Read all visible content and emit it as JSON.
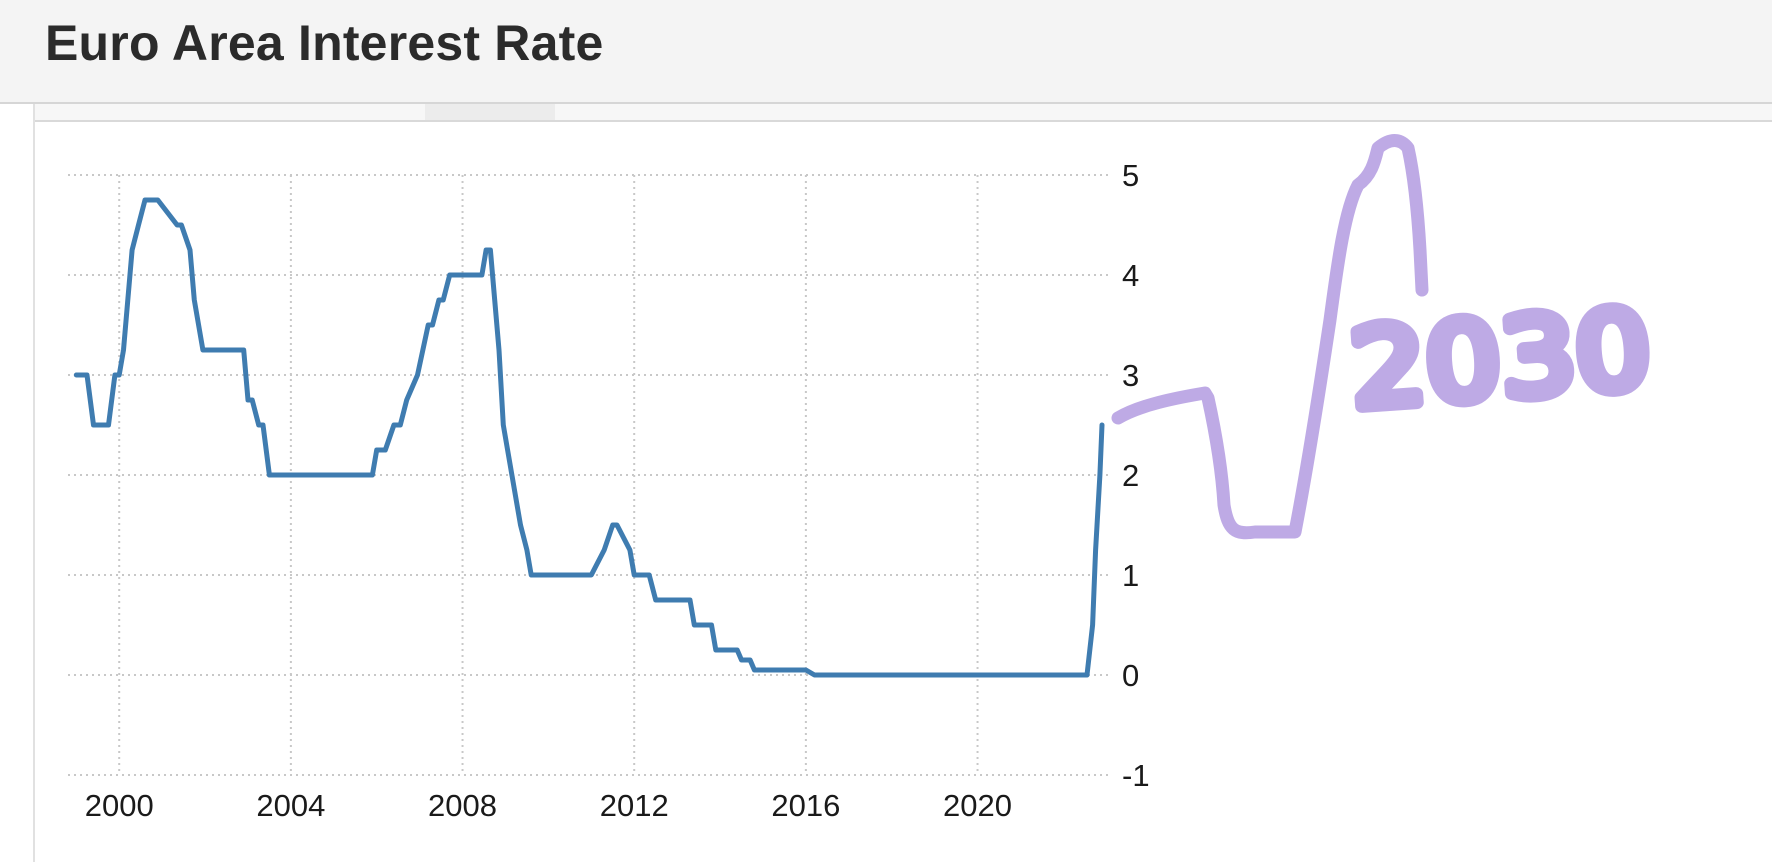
{
  "header": {
    "title": "Euro Area Interest Rate"
  },
  "chart_data": {
    "type": "line",
    "title": "Euro Area Interest Rate",
    "xlabel": "",
    "ylabel": "",
    "xlim": [
      1998.9,
      2022.9
    ],
    "ylim": [
      -1,
      5
    ],
    "x_ticks": [
      2000,
      2004,
      2008,
      2012,
      2016,
      2020
    ],
    "y_ticks": [
      -1,
      0,
      1,
      2,
      3,
      4,
      5
    ],
    "y_axis_side": "right",
    "grid": true,
    "grid_style": "dotted",
    "legend": "none",
    "series": [
      {
        "color": "#3f7cb0",
        "x": [
          1999.0,
          1999.25,
          1999.4,
          1999.75,
          1999.9,
          2000.0,
          2000.1,
          2000.2,
          2000.3,
          2000.45,
          2000.6,
          2000.75,
          2000.9,
          2001.35,
          2001.45,
          2001.65,
          2001.75,
          2001.95,
          2002.0,
          2002.9,
          2003.0,
          2003.1,
          2003.25,
          2003.35,
          2003.5,
          2003.6,
          2004.5,
          2005.5,
          2005.9,
          2006.0,
          2006.2,
          2006.4,
          2006.55,
          2006.7,
          2006.95,
          2007.2,
          2007.3,
          2007.45,
          2007.55,
          2007.7,
          2007.9,
          2008.45,
          2008.55,
          2008.65,
          2008.75,
          2008.85,
          2008.95,
          2009.15,
          2009.35,
          2009.5,
          2009.6,
          2010.0,
          2011.0,
          2011.3,
          2011.5,
          2011.6,
          2011.9,
          2012.0,
          2012.35,
          2012.5,
          2013.3,
          2013.4,
          2013.8,
          2013.9,
          2014.4,
          2014.5,
          2014.7,
          2014.8,
          2015.0,
          2016.0,
          2016.2,
          2016.4,
          2017.0,
          2019.0,
          2020.0,
          2021.0,
          2022.0,
          2022.55,
          2022.68,
          2022.75,
          2022.85,
          2022.9
        ],
        "y": [
          3.0,
          3.0,
          2.5,
          2.5,
          3.0,
          3.0,
          3.25,
          3.75,
          4.25,
          4.5,
          4.75,
          4.75,
          4.75,
          4.5,
          4.5,
          4.25,
          3.75,
          3.25,
          3.25,
          3.25,
          2.75,
          2.75,
          2.5,
          2.5,
          2.0,
          2.0,
          2.0,
          2.0,
          2.0,
          2.25,
          2.25,
          2.5,
          2.5,
          2.75,
          3.0,
          3.5,
          3.5,
          3.75,
          3.75,
          4.0,
          4.0,
          4.0,
          4.25,
          4.25,
          3.75,
          3.25,
          2.5,
          2.0,
          1.5,
          1.25,
          1.0,
          1.0,
          1.0,
          1.25,
          1.5,
          1.5,
          1.25,
          1.0,
          1.0,
          0.75,
          0.75,
          0.5,
          0.5,
          0.25,
          0.25,
          0.15,
          0.15,
          0.05,
          0.05,
          0.05,
          0.0,
          0.0,
          0.0,
          0.0,
          0.0,
          0.0,
          0.0,
          0.0,
          0.5,
          1.25,
          2.0,
          2.5
        ]
      }
    ]
  },
  "annotation": {
    "text": "2030",
    "color": "#b9a3e3"
  }
}
